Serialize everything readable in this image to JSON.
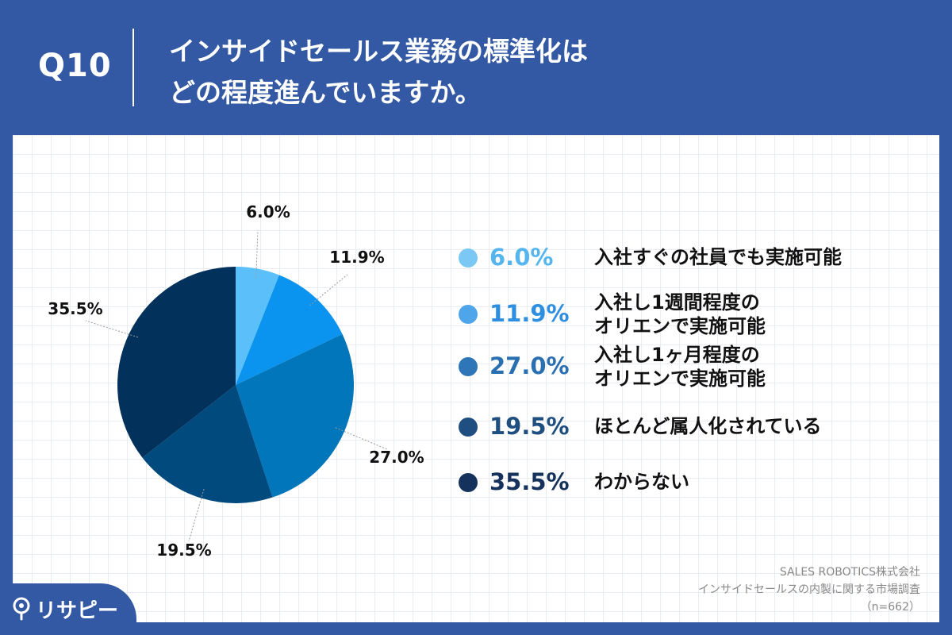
{
  "header": {
    "question": "Q10",
    "title_line1": "インサイドセールス業務の標準化は",
    "title_line2": "どの程度進んでいますか。"
  },
  "chart_data": {
    "type": "pie",
    "labels": [
      "入社すぐの社員でも実施可能",
      "入社し1週間程度のオリエンで実施可能",
      "入社し1ヶ月程度のオリエンで実施可能",
      "ほとんど属人化されている",
      "わからない"
    ],
    "values": [
      6.0,
      11.9,
      27.0,
      19.5,
      35.5
    ],
    "value_labels": [
      "6.0%",
      "11.9%",
      "27.0%",
      "19.5%",
      "35.5%"
    ],
    "colors": [
      "#5BC0FA",
      "#0A94F0",
      "#0276BA",
      "#014A7E",
      "#02315C"
    ],
    "start": "12 o'clock",
    "direction": "clockwise"
  },
  "legend": [
    {
      "pct": "6.0%",
      "line1": "入社すぐの社員でも実施可能",
      "line2": "",
      "dot_color": "#7CC8F4",
      "text_color": "#55B5EE"
    },
    {
      "pct": "11.9%",
      "line1": "入社し1週間程度の",
      "line2": "オリエンで実施可能",
      "dot_color": "#4FA5EA",
      "text_color": "#2E8FE0"
    },
    {
      "pct": "27.0%",
      "line1": "入社し1ヶ月程度の",
      "line2": "オリエンで実施可能",
      "dot_color": "#2E76B8",
      "text_color": "#2A6FB0"
    },
    {
      "pct": "19.5%",
      "line1": "ほとんど属人化されている",
      "line2": "",
      "dot_color": "#1F4E80",
      "text_color": "#1F4E80"
    },
    {
      "pct": "35.5%",
      "line1": "わからない",
      "line2": "",
      "dot_color": "#14325C",
      "text_color": "#14325C"
    }
  ],
  "source": {
    "line1": "SALES ROBOTICS株式会社",
    "line2": "インサイドセールスの内製に関する市場調査",
    "line3": "（n=662）"
  },
  "logo": {
    "text": "リサピー"
  }
}
